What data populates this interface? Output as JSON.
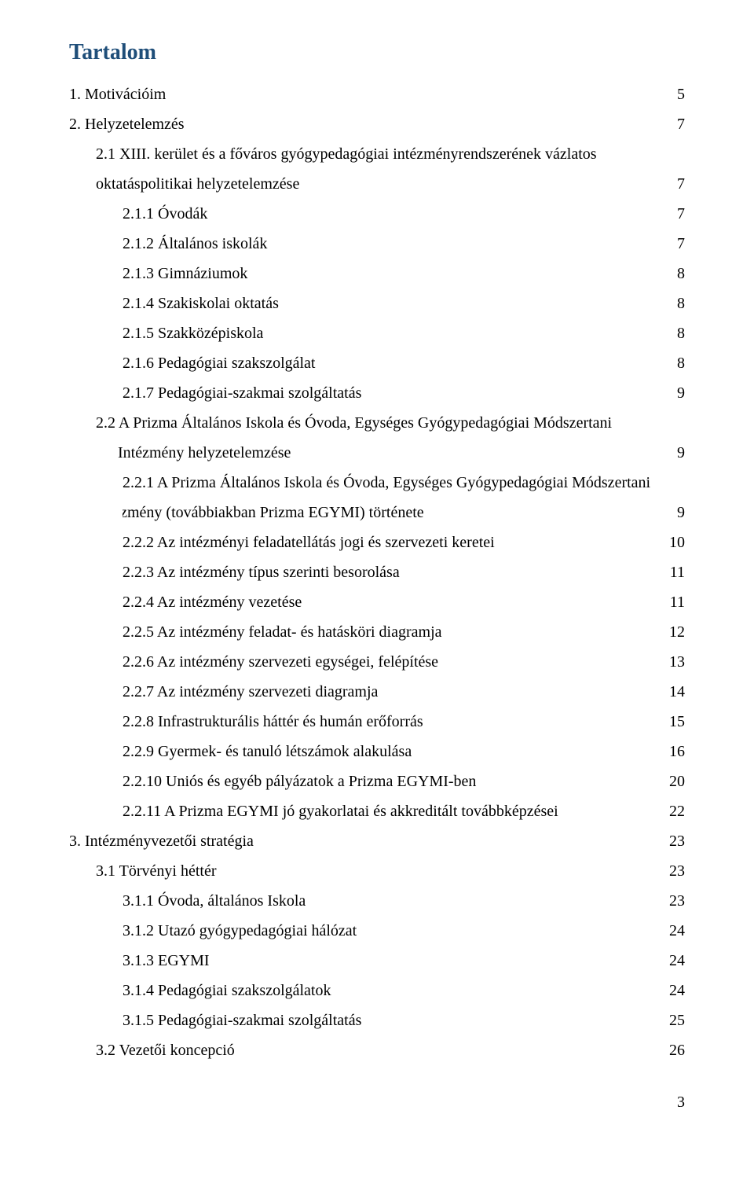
{
  "title": "Tartalom",
  "page_number": "3",
  "colors": {
    "title": "#1f4e79",
    "text": "#000000",
    "background": "#ffffff"
  },
  "entries": [
    {
      "level": 0,
      "label": "1.  Motivációim",
      "page": "5"
    },
    {
      "level": 0,
      "label": "2.  Helyzetelemzés",
      "page": "7"
    },
    {
      "level": 1,
      "label_line1": "2.1 XIII. kerület és a főváros gyógypedagógiai intézményrendszerének vázlatos",
      "label_line2": "oktatáspolitikai helyzetelemzése",
      "page": "7",
      "wrap": true
    },
    {
      "level": 2,
      "label": "2.1.1 Óvodák",
      "page": "7"
    },
    {
      "level": 2,
      "label": "2.1.2 Általános iskolák",
      "page": "7"
    },
    {
      "level": 2,
      "label": "2.1.3 Gimnáziumok",
      "page": "8"
    },
    {
      "level": 2,
      "label": "2.1.4 Szakiskolai oktatás",
      "page": "8"
    },
    {
      "level": 2,
      "label": "2.1.5 Szakközépiskola",
      "page": "8"
    },
    {
      "level": 2,
      "label": "2.1.6 Pedagógiai szakszolgálat",
      "page": "8"
    },
    {
      "level": 2,
      "label": "2.1.7 Pedagógiai-szakmai szolgáltatás",
      "page": "9"
    },
    {
      "level": 1,
      "label_line1": "2.2 A Prizma Általános Iskola és Óvoda, Egységes Gyógypedagógiai Módszertani",
      "label_line2": "Intézmény helyzetelemzése",
      "page": "9",
      "wrap": true,
      "line2_indent": true
    },
    {
      "level": 2,
      "label_line1": "2.2.1 A Prizma Általános Iskola és Óvoda, Egységes Gyógypedagógiai Módszertani",
      "label_line2": "Intézmény (továbbiakban Prizma EGYMI) története",
      "page": "9",
      "wrap": true,
      "line2_outdent": true
    },
    {
      "level": 2,
      "label": "2.2.2 Az intézményi feladatellátás jogi és szervezeti keretei",
      "page": "10"
    },
    {
      "level": 2,
      "label": "2.2.3 Az intézmény típus szerinti besorolása",
      "page": "11"
    },
    {
      "level": 2,
      "label": "2.2.4 Az intézmény vezetése",
      "page": "11"
    },
    {
      "level": 2,
      "label": "2.2.5 Az intézmény feladat- és hatásköri diagramja",
      "page": "12"
    },
    {
      "level": 2,
      "label": "2.2.6 Az intézmény szervezeti egységei, felépítése",
      "page": "13"
    },
    {
      "level": 2,
      "label": "2.2.7 Az intézmény szervezeti diagramja",
      "page": "14"
    },
    {
      "level": 2,
      "label": "2.2.8 Infrastrukturális háttér és humán erőforrás",
      "page": "15"
    },
    {
      "level": 2,
      "label": "2.2.9 Gyermek- és tanuló létszámok alakulása",
      "page": "16"
    },
    {
      "level": 2,
      "label": "2.2.10 Uniós és egyéb pályázatok a Prizma EGYMI-ben",
      "page": "20"
    },
    {
      "level": 2,
      "label": "2.2.11 A Prizma EGYMI jó gyakorlatai és akkreditált továbbképzései",
      "page": "22"
    },
    {
      "level": 0,
      "label": "3. Intézményvezetői stratégia",
      "page": "23"
    },
    {
      "level": 1,
      "label": "3.1 Törvényi héttér",
      "page": "23"
    },
    {
      "level": 2,
      "label": "3.1.1 Óvoda, általános Iskola",
      "page": "23"
    },
    {
      "level": 2,
      "label": "3.1.2 Utazó gyógypedagógiai hálózat",
      "page": "24"
    },
    {
      "level": 2,
      "label": "3.1.3 EGYMI",
      "page": "24"
    },
    {
      "level": 2,
      "label": "3.1.4 Pedagógiai szakszolgálatok",
      "page": "24"
    },
    {
      "level": 2,
      "label": "3.1.5 Pedagógiai-szakmai szolgáltatás",
      "page": "25"
    },
    {
      "level": 1,
      "label": "3.2 Vezetői koncepció",
      "page": "26"
    }
  ]
}
